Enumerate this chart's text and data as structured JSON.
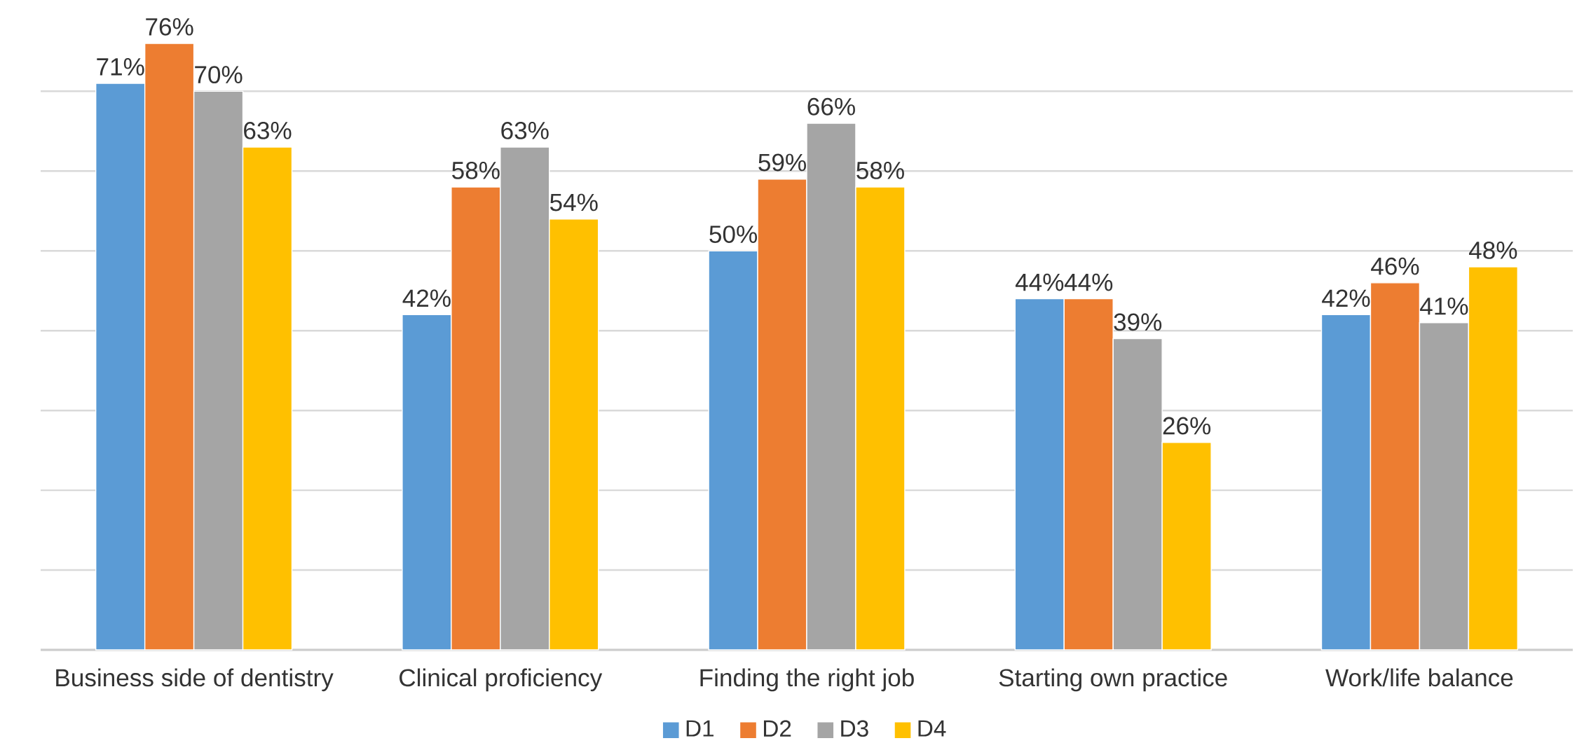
{
  "chart_data": {
    "type": "bar",
    "categories": [
      "Business side of dentistry",
      "Clinical proficiency",
      "Finding the right job",
      "Starting own practice",
      "Work/life balance"
    ],
    "series": [
      {
        "name": "D1",
        "color": "#5b9bd5",
        "values": [
          71,
          42,
          50,
          44,
          42
        ],
        "value_labels": [
          "71%",
          "42%",
          "50%",
          "44%",
          "42%"
        ]
      },
      {
        "name": "D2",
        "color": "#ed7d31",
        "values": [
          76,
          58,
          59,
          44,
          46
        ],
        "value_labels": [
          "76%",
          "58%",
          "59%",
          "44%",
          "46%"
        ]
      },
      {
        "name": "D3",
        "color": "#a5a5a5",
        "values": [
          70,
          63,
          66,
          39,
          41
        ],
        "value_labels": [
          "70%",
          "63%",
          "66%",
          "39%",
          "41%"
        ]
      },
      {
        "name": "D4",
        "color": "#ffc000",
        "values": [
          63,
          54,
          58,
          26,
          48
        ],
        "value_labels": [
          "63%",
          "54%",
          "58%",
          "26%",
          "48%"
        ]
      }
    ],
    "yticks": [
      {
        "value": 0,
        "label": null
      },
      {
        "value": 10,
        "label": null
      },
      {
        "value": 20,
        "label": null
      },
      {
        "value": 30,
        "label": null
      },
      {
        "value": 40,
        "label": null
      },
      {
        "value": 50,
        "label": null
      },
      {
        "value": 60,
        "label": null
      },
      {
        "value": 70,
        "label": null
      }
    ],
    "grid": "y",
    "legend": "bottom"
  }
}
